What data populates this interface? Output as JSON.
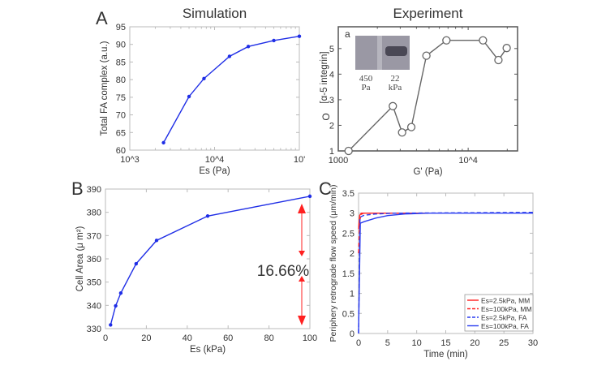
{
  "labels": {
    "panel_a": "A",
    "panel_b": "B",
    "panel_c": "C"
  },
  "chart_data": [
    {
      "id": "sim",
      "type": "line",
      "title": "Simulation",
      "xlabel": "Es (Pa)",
      "ylabel": "Total FA complex (a.u.)",
      "xscale": "log",
      "xlim": [
        1000,
        100000
      ],
      "ylim": [
        60,
        95
      ],
      "xticks": [
        1000,
        10000,
        100000
      ],
      "xtick_labels": [
        "10^3",
        "10^4",
        "10'"
      ],
      "yticks": [
        60,
        65,
        70,
        75,
        80,
        85,
        90,
        95
      ],
      "series": [
        {
          "color": "#1f2ee6",
          "marker": "dot",
          "x": [
            2500,
            5000,
            7500,
            15000,
            25000,
            50000,
            100000
          ],
          "y": [
            62.1,
            75.2,
            80.3,
            86.6,
            89.4,
            91.1,
            92.3
          ]
        }
      ]
    },
    {
      "id": "exp",
      "type": "line",
      "title": "Experiment",
      "panel_tag": "a",
      "xlabel": "G' (Pa)",
      "ylabel": "[α-5 integrin]",
      "ylabel_symbol": "O",
      "xscale": "log",
      "xlim": [
        1000,
        24000
      ],
      "ylim": [
        1,
        5.85
      ],
      "xticks": [
        1000,
        10000
      ],
      "xtick_labels": [
        "1000",
        "10^4"
      ],
      "yticks": [
        1,
        2,
        3,
        4,
        5
      ],
      "inset": {
        "lanes": [
          {
            "label1": "450",
            "label2": "Pa"
          },
          {
            "label1": "22",
            "label2": "kPa"
          }
        ]
      },
      "series": [
        {
          "color": "#666666",
          "marker": "circle",
          "x": [
            1200,
            2630,
            3100,
            3650,
            4770,
            6800,
            13000,
            17100,
            19800
          ],
          "y": [
            1,
            2.75,
            1.72,
            1.93,
            4.72,
            5.32,
            5.32,
            4.55,
            5.02
          ]
        }
      ]
    },
    {
      "id": "area",
      "type": "line",
      "xlabel": "Es (kPa)",
      "ylabel": "Cell Area (μ m²)",
      "xlim": [
        0,
        100
      ],
      "ylim": [
        330,
        390
      ],
      "xticks": [
        0,
        20,
        40,
        60,
        80,
        100
      ],
      "yticks": [
        330,
        340,
        350,
        360,
        370,
        380,
        390
      ],
      "annotation": {
        "text": "16.66%",
        "color": "#ff2020"
      },
      "series": [
        {
          "color": "#1f2ee6",
          "marker": "dot",
          "x": [
            2.5,
            5,
            7.5,
            15,
            25,
            50,
            100
          ],
          "y": [
            331.6,
            339.8,
            345.3,
            357.9,
            367.9,
            378.4,
            386.9
          ]
        }
      ]
    },
    {
      "id": "flow",
      "type": "line",
      "xlabel": "Time (min)",
      "ylabel": "Periphery retrograde flow speed (μm/min)",
      "xlim": [
        0,
        30
      ],
      "ylim": [
        0,
        3.5
      ],
      "xticks": [
        0,
        5,
        10,
        15,
        20,
        25,
        30
      ],
      "yticks": [
        0,
        0.5,
        1,
        1.5,
        2,
        2.5,
        3,
        3.5
      ],
      "legend": "bottom-right",
      "series": [
        {
          "name": "Es=2.5kPa, MM",
          "color": "#ff2020",
          "dash": false,
          "x": [
            0,
            0.2,
            0.5,
            12
          ],
          "y": [
            2.6,
            2.95,
            3.0,
            3.0
          ]
        },
        {
          "name": "Es=100kPa, MM",
          "color": "#ff2020",
          "dash": true,
          "x": [
            0,
            0.2,
            0.4,
            0.8,
            12
          ],
          "y": [
            2.0,
            2.8,
            2.96,
            3.0,
            3.0
          ]
        },
        {
          "name": "Es=2.5kPa, FA",
          "color": "#2a3cf0",
          "dash": true,
          "x": [
            0,
            0.25,
            1,
            3,
            6,
            30
          ],
          "y": [
            0,
            2.9,
            2.95,
            2.98,
            3.0,
            3.02
          ]
        },
        {
          "name": "Es=100kPa, FA",
          "color": "#2a3cf0",
          "dash": false,
          "x": [
            0,
            0.3,
            1,
            3,
            5,
            8,
            12,
            30
          ],
          "y": [
            0,
            2.75,
            2.79,
            2.88,
            2.94,
            2.98,
            3.0,
            3.0
          ]
        }
      ]
    }
  ]
}
